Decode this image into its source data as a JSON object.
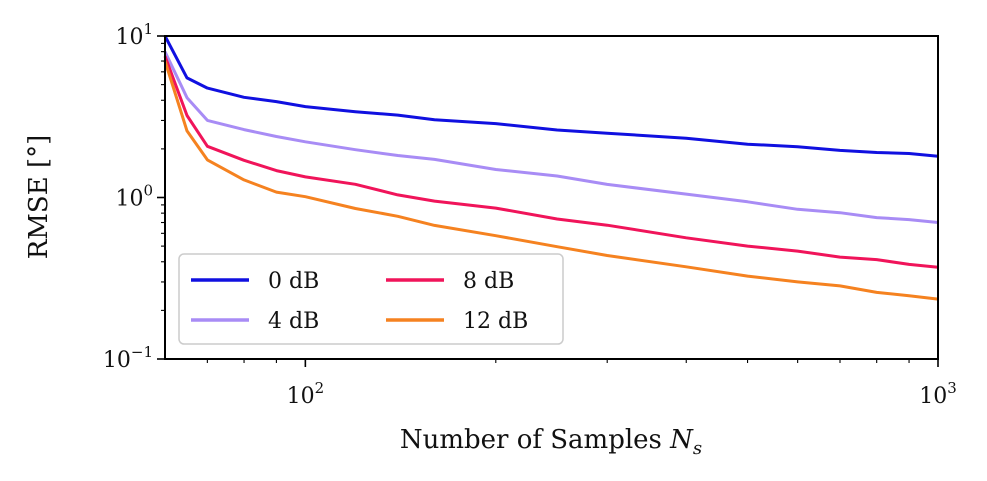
{
  "chart_data": {
    "type": "line",
    "title": "",
    "xlabel": "Number of Samples N_s",
    "ylabel": "RMSE [°]",
    "xscale": "log",
    "yscale": "log",
    "xlim": [
      60,
      1000
    ],
    "ylim": [
      0.1,
      10
    ],
    "grid": false,
    "legend_position": "lower-left",
    "x_ticks": [
      {
        "value": 100,
        "base": "10",
        "exp": "2"
      },
      {
        "value": 1000,
        "base": "10",
        "exp": "3"
      }
    ],
    "y_ticks": [
      {
        "value": 10,
        "base": "10",
        "exp": "1"
      },
      {
        "value": 1,
        "base": "10",
        "exp": "0"
      },
      {
        "value": 0.1,
        "base": "10",
        "exp": "−1"
      }
    ],
    "x": [
      60,
      65,
      70,
      80,
      90,
      100,
      120,
      140,
      160,
      200,
      250,
      300,
      400,
      500,
      600,
      700,
      800,
      900,
      1000
    ],
    "series": [
      {
        "name": "0 dB",
        "color": "#1010e0",
        "values": [
          10.0,
          5.5,
          4.7,
          4.2,
          3.9,
          3.7,
          3.4,
          3.2,
          3.05,
          2.85,
          2.65,
          2.5,
          2.3,
          2.15,
          2.05,
          1.98,
          1.9,
          1.85,
          1.8
        ]
      },
      {
        "name": "4 dB",
        "color": "#a88cf5",
        "values": [
          8.0,
          4.2,
          3.0,
          2.6,
          2.4,
          2.2,
          2.0,
          1.82,
          1.7,
          1.5,
          1.35,
          1.22,
          1.05,
          0.93,
          0.85,
          0.8,
          0.76,
          0.73,
          0.7
        ]
      },
      {
        "name": "8 dB",
        "color": "#f0145a",
        "values": [
          7.5,
          3.2,
          2.1,
          1.7,
          1.45,
          1.35,
          1.2,
          1.05,
          0.95,
          0.85,
          0.74,
          0.67,
          0.57,
          0.5,
          0.46,
          0.43,
          0.41,
          0.39,
          0.37
        ]
      },
      {
        "name": "12 dB",
        "color": "#f58220",
        "values": [
          7.0,
          2.6,
          1.7,
          1.3,
          1.08,
          1.0,
          0.86,
          0.76,
          0.68,
          0.58,
          0.49,
          0.44,
          0.37,
          0.33,
          0.3,
          0.28,
          0.26,
          0.245,
          0.235
        ]
      }
    ]
  }
}
